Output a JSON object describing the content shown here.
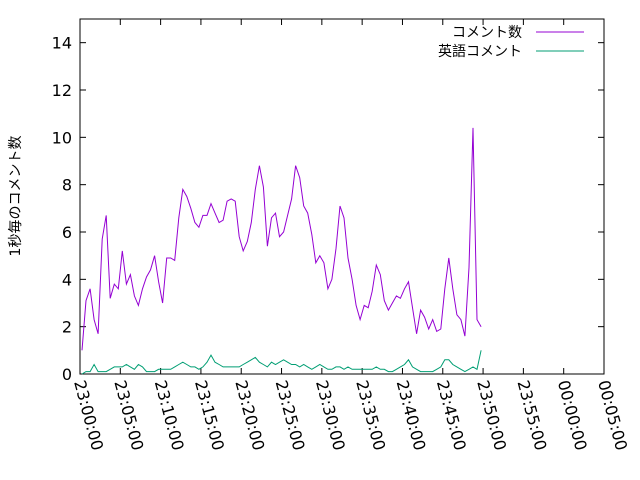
{
  "chart_data": {
    "type": "line",
    "title": "",
    "xlabel": "",
    "ylabel": "1秒毎のコメント数",
    "ylim": [
      0,
      15
    ],
    "yticks": [
      0,
      2,
      4,
      6,
      8,
      10,
      12,
      14
    ],
    "xlim": [
      "23:00:00",
      "00:05:00"
    ],
    "xticks": [
      "23:00:00",
      "23:05:00",
      "23:10:00",
      "23:15:00",
      "23:20:00",
      "23:25:00",
      "23:30:00",
      "23:35:00",
      "23:40:00",
      "23:45:00",
      "23:50:00",
      "23:55:00",
      "00:00:00",
      "00:05:00"
    ],
    "legend_position": "top-right",
    "grid": false,
    "series": [
      {
        "name": "コメント数",
        "color": "#9400d3",
        "points": [
          [
            "23:00:15",
            1.0
          ],
          [
            "23:00:45",
            3.1
          ],
          [
            "23:01:15",
            3.6
          ],
          [
            "23:01:45",
            2.3
          ],
          [
            "23:02:15",
            1.7
          ],
          [
            "23:02:45",
            5.7
          ],
          [
            "23:03:15",
            6.7
          ],
          [
            "23:03:45",
            3.2
          ],
          [
            "23:04:15",
            3.8
          ],
          [
            "23:04:45",
            3.6
          ],
          [
            "23:05:15",
            5.2
          ],
          [
            "23:05:45",
            3.8
          ],
          [
            "23:06:15",
            4.2
          ],
          [
            "23:06:45",
            3.3
          ],
          [
            "23:07:15",
            2.9
          ],
          [
            "23:07:45",
            3.6
          ],
          [
            "23:08:15",
            4.1
          ],
          [
            "23:08:45",
            4.4
          ],
          [
            "23:09:15",
            5.0
          ],
          [
            "23:09:45",
            3.9
          ],
          [
            "23:10:15",
            3.0
          ],
          [
            "23:10:45",
            4.9
          ],
          [
            "23:11:15",
            4.9
          ],
          [
            "23:11:45",
            4.8
          ],
          [
            "23:12:15",
            6.6
          ],
          [
            "23:12:45",
            7.8
          ],
          [
            "23:13:15",
            7.5
          ],
          [
            "23:13:45",
            7.0
          ],
          [
            "23:14:15",
            6.4
          ],
          [
            "23:14:45",
            6.2
          ],
          [
            "23:15:15",
            6.7
          ],
          [
            "23:15:45",
            6.7
          ],
          [
            "23:16:15",
            7.2
          ],
          [
            "23:16:45",
            6.8
          ],
          [
            "23:17:15",
            6.4
          ],
          [
            "23:17:45",
            6.5
          ],
          [
            "23:18:15",
            7.3
          ],
          [
            "23:18:45",
            7.4
          ],
          [
            "23:19:15",
            7.3
          ],
          [
            "23:19:45",
            5.8
          ],
          [
            "23:20:15",
            5.2
          ],
          [
            "23:20:45",
            5.6
          ],
          [
            "23:21:15",
            6.4
          ],
          [
            "23:21:45",
            7.8
          ],
          [
            "23:22:15",
            8.8
          ],
          [
            "23:22:45",
            7.9
          ],
          [
            "23:23:15",
            5.4
          ],
          [
            "23:23:45",
            6.6
          ],
          [
            "23:24:15",
            6.8
          ],
          [
            "23:24:45",
            5.8
          ],
          [
            "23:25:15",
            6.0
          ],
          [
            "23:25:45",
            6.7
          ],
          [
            "23:26:15",
            7.4
          ],
          [
            "23:26:45",
            8.8
          ],
          [
            "23:27:15",
            8.3
          ],
          [
            "23:27:45",
            7.1
          ],
          [
            "23:28:15",
            6.8
          ],
          [
            "23:28:45",
            5.9
          ],
          [
            "23:29:15",
            4.7
          ],
          [
            "23:29:45",
            5.0
          ],
          [
            "23:30:15",
            4.7
          ],
          [
            "23:30:45",
            3.6
          ],
          [
            "23:31:15",
            4.0
          ],
          [
            "23:31:45",
            5.3
          ],
          [
            "23:32:15",
            7.1
          ],
          [
            "23:32:45",
            6.6
          ],
          [
            "23:33:15",
            4.9
          ],
          [
            "23:33:45",
            4.0
          ],
          [
            "23:34:15",
            2.9
          ],
          [
            "23:34:45",
            2.3
          ],
          [
            "23:35:15",
            2.9
          ],
          [
            "23:35:45",
            2.8
          ],
          [
            "23:36:15",
            3.5
          ],
          [
            "23:36:45",
            4.6
          ],
          [
            "23:37:15",
            4.2
          ],
          [
            "23:37:45",
            3.1
          ],
          [
            "23:38:15",
            2.7
          ],
          [
            "23:38:45",
            3.0
          ],
          [
            "23:39:15",
            3.3
          ],
          [
            "23:39:45",
            3.2
          ],
          [
            "23:40:15",
            3.6
          ],
          [
            "23:40:45",
            3.9
          ],
          [
            "23:41:15",
            2.8
          ],
          [
            "23:41:45",
            1.7
          ],
          [
            "23:42:15",
            2.7
          ],
          [
            "23:42:45",
            2.4
          ],
          [
            "23:43:15",
            1.9
          ],
          [
            "23:43:45",
            2.3
          ],
          [
            "23:44:15",
            1.8
          ],
          [
            "23:44:45",
            1.9
          ],
          [
            "23:45:15",
            3.6
          ],
          [
            "23:45:45",
            4.9
          ],
          [
            "23:46:15",
            3.6
          ],
          [
            "23:46:45",
            2.5
          ],
          [
            "23:47:15",
            2.3
          ],
          [
            "23:47:45",
            1.6
          ],
          [
            "23:48:15",
            4.5
          ],
          [
            "23:48:45",
            10.4
          ],
          [
            "23:49:15",
            2.3
          ],
          [
            "23:49:45",
            2.0
          ]
        ]
      },
      {
        "name": "英語コメント",
        "color": "#009e73",
        "points": [
          [
            "23:00:15",
            0.0
          ],
          [
            "23:00:45",
            0.1
          ],
          [
            "23:01:15",
            0.1
          ],
          [
            "23:01:45",
            0.4
          ],
          [
            "23:02:15",
            0.1
          ],
          [
            "23:02:45",
            0.1
          ],
          [
            "23:03:15",
            0.1
          ],
          [
            "23:03:45",
            0.2
          ],
          [
            "23:04:15",
            0.3
          ],
          [
            "23:04:45",
            0.3
          ],
          [
            "23:05:15",
            0.3
          ],
          [
            "23:05:45",
            0.4
          ],
          [
            "23:06:15",
            0.3
          ],
          [
            "23:06:45",
            0.2
          ],
          [
            "23:07:15",
            0.4
          ],
          [
            "23:07:45",
            0.3
          ],
          [
            "23:08:15",
            0.1
          ],
          [
            "23:08:45",
            0.1
          ],
          [
            "23:09:15",
            0.1
          ],
          [
            "23:09:45",
            0.2
          ],
          [
            "23:10:15",
            0.2
          ],
          [
            "23:10:45",
            0.2
          ],
          [
            "23:11:15",
            0.2
          ],
          [
            "23:11:45",
            0.3
          ],
          [
            "23:12:15",
            0.4
          ],
          [
            "23:12:45",
            0.5
          ],
          [
            "23:13:15",
            0.4
          ],
          [
            "23:13:45",
            0.3
          ],
          [
            "23:14:15",
            0.3
          ],
          [
            "23:14:45",
            0.2
          ],
          [
            "23:15:15",
            0.3
          ],
          [
            "23:15:45",
            0.5
          ],
          [
            "23:16:15",
            0.8
          ],
          [
            "23:16:45",
            0.5
          ],
          [
            "23:17:15",
            0.4
          ],
          [
            "23:17:45",
            0.3
          ],
          [
            "23:18:15",
            0.3
          ],
          [
            "23:18:45",
            0.3
          ],
          [
            "23:19:15",
            0.3
          ],
          [
            "23:19:45",
            0.3
          ],
          [
            "23:20:15",
            0.4
          ],
          [
            "23:20:45",
            0.5
          ],
          [
            "23:21:15",
            0.6
          ],
          [
            "23:21:45",
            0.7
          ],
          [
            "23:22:15",
            0.5
          ],
          [
            "23:22:45",
            0.4
          ],
          [
            "23:23:15",
            0.3
          ],
          [
            "23:23:45",
            0.5
          ],
          [
            "23:24:15",
            0.4
          ],
          [
            "23:24:45",
            0.5
          ],
          [
            "23:25:15",
            0.6
          ],
          [
            "23:25:45",
            0.5
          ],
          [
            "23:26:15",
            0.4
          ],
          [
            "23:26:45",
            0.4
          ],
          [
            "23:27:15",
            0.3
          ],
          [
            "23:27:45",
            0.4
          ],
          [
            "23:28:15",
            0.3
          ],
          [
            "23:28:45",
            0.2
          ],
          [
            "23:29:15",
            0.3
          ],
          [
            "23:29:45",
            0.4
          ],
          [
            "23:30:15",
            0.3
          ],
          [
            "23:30:45",
            0.2
          ],
          [
            "23:31:15",
            0.2
          ],
          [
            "23:31:45",
            0.3
          ],
          [
            "23:32:15",
            0.3
          ],
          [
            "23:32:45",
            0.2
          ],
          [
            "23:33:15",
            0.3
          ],
          [
            "23:33:45",
            0.2
          ],
          [
            "23:34:15",
            0.2
          ],
          [
            "23:34:45",
            0.2
          ],
          [
            "23:35:15",
            0.2
          ],
          [
            "23:35:45",
            0.2
          ],
          [
            "23:36:15",
            0.2
          ],
          [
            "23:36:45",
            0.3
          ],
          [
            "23:37:15",
            0.2
          ],
          [
            "23:37:45",
            0.2
          ],
          [
            "23:38:15",
            0.1
          ],
          [
            "23:38:45",
            0.1
          ],
          [
            "23:39:15",
            0.2
          ],
          [
            "23:39:45",
            0.3
          ],
          [
            "23:40:15",
            0.4
          ],
          [
            "23:40:45",
            0.6
          ],
          [
            "23:41:15",
            0.3
          ],
          [
            "23:41:45",
            0.2
          ],
          [
            "23:42:15",
            0.1
          ],
          [
            "23:42:45",
            0.1
          ],
          [
            "23:43:15",
            0.1
          ],
          [
            "23:43:45",
            0.1
          ],
          [
            "23:44:15",
            0.2
          ],
          [
            "23:44:45",
            0.3
          ],
          [
            "23:45:15",
            0.6
          ],
          [
            "23:45:45",
            0.6
          ],
          [
            "23:46:15",
            0.4
          ],
          [
            "23:46:45",
            0.3
          ],
          [
            "23:47:15",
            0.2
          ],
          [
            "23:47:45",
            0.1
          ],
          [
            "23:48:15",
            0.2
          ],
          [
            "23:48:45",
            0.3
          ],
          [
            "23:49:15",
            0.2
          ],
          [
            "23:49:45",
            1.0
          ]
        ]
      }
    ]
  }
}
